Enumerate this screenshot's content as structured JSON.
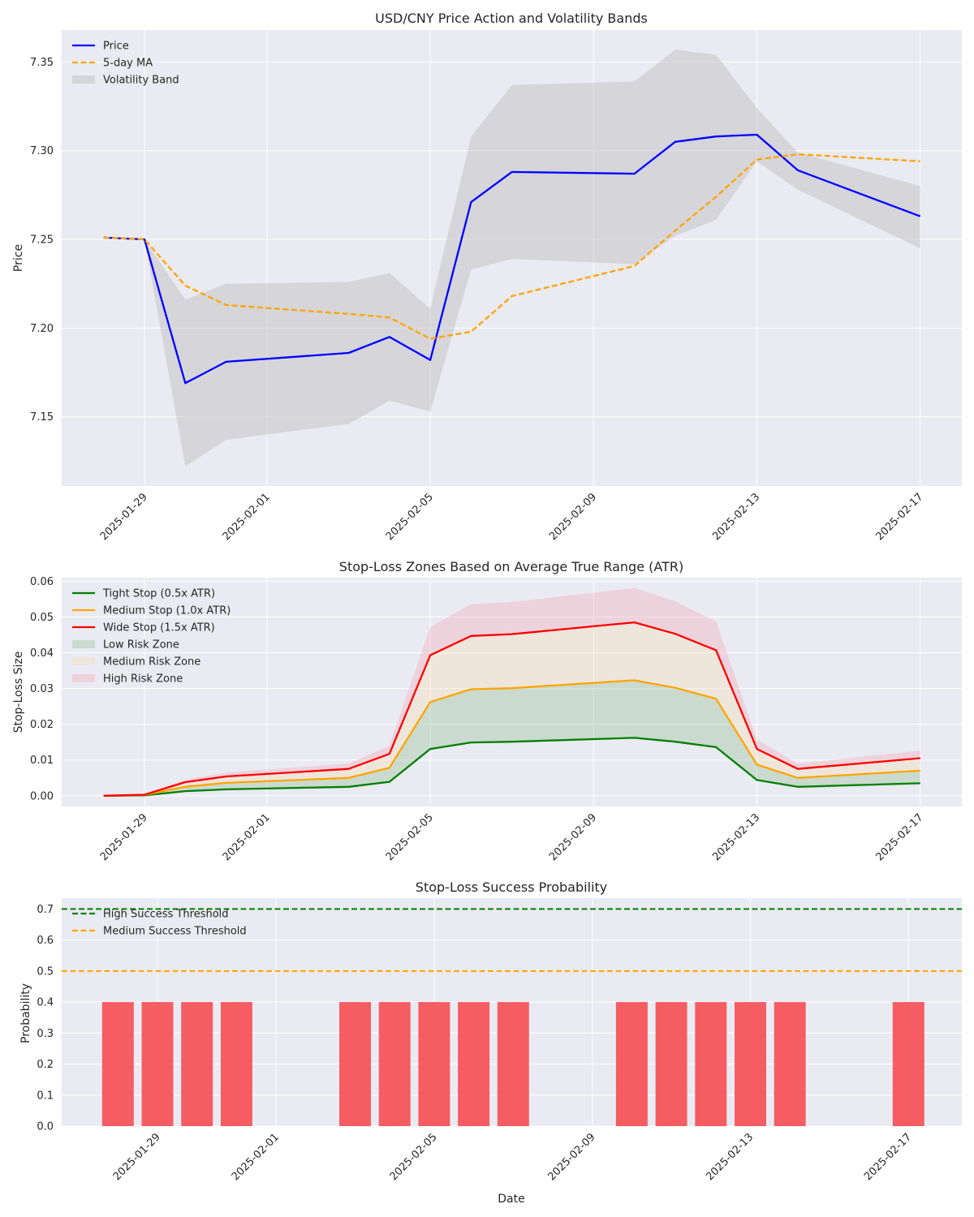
{
  "chart_data": [
    {
      "id": "price",
      "type": "line",
      "title": "USD/CNY Price Action and Volatility Bands",
      "xlabel": "",
      "ylabel": "Price",
      "ylim": [
        7.111,
        7.368
      ],
      "yticks": [
        "7.15",
        "7.20",
        "7.25",
        "7.30",
        "7.35"
      ],
      "ytick_values": [
        7.15,
        7.2,
        7.25,
        7.3,
        7.35
      ],
      "xticks": [
        "2025-01-29",
        "2025-02-01",
        "2025-02-05",
        "2025-02-09",
        "2025-02-13",
        "2025-02-17"
      ],
      "grid": true,
      "legend_position": "top-left",
      "x": [
        "2025-01-28",
        "2025-01-29",
        "2025-01-30",
        "2025-01-31",
        "2025-02-03",
        "2025-02-04",
        "2025-02-05",
        "2025-02-06",
        "2025-02-07",
        "2025-02-10",
        "2025-02-11",
        "2025-02-12",
        "2025-02-13",
        "2025-02-14",
        "2025-02-17"
      ],
      "series": [
        {
          "name": "Price",
          "style": "solid",
          "color": "#0000ff",
          "values": [
            7.251,
            7.25,
            7.169,
            7.181,
            7.186,
            7.195,
            7.182,
            7.271,
            7.288,
            7.287,
            7.305,
            7.308,
            7.309,
            7.289,
            7.263
          ]
        },
        {
          "name": "5-day MA",
          "style": "dashed",
          "color": "#ffa500",
          "values": [
            7.251,
            7.25,
            7.224,
            7.213,
            7.208,
            7.206,
            7.194,
            7.198,
            7.218,
            7.235,
            7.255,
            7.274,
            7.295,
            7.298,
            7.294
          ]
        }
      ],
      "bands": [
        {
          "name": "Volatility Band",
          "color": "#bdbdbd",
          "upper": [
            7.251,
            7.25,
            7.216,
            7.225,
            7.226,
            7.231,
            7.211,
            7.308,
            7.337,
            7.339,
            7.357,
            7.354,
            7.324,
            7.299,
            7.28
          ],
          "lower": [
            7.251,
            7.25,
            7.122,
            7.137,
            7.146,
            7.159,
            7.153,
            7.233,
            7.239,
            7.236,
            7.252,
            7.261,
            7.294,
            7.278,
            7.245
          ]
        }
      ]
    },
    {
      "id": "stoploss",
      "type": "area",
      "title": "Stop-Loss Zones Based on Average True Range (ATR)",
      "xlabel": "",
      "ylabel": "Stop-Loss Size",
      "ylim": [
        -0.003,
        0.061
      ],
      "yticks": [
        "0.00",
        "0.01",
        "0.02",
        "0.03",
        "0.04",
        "0.05",
        "0.06"
      ],
      "ytick_values": [
        0,
        0.01,
        0.02,
        0.03,
        0.04,
        0.05,
        0.06
      ],
      "xticks": [
        "2025-01-29",
        "2025-02-01",
        "2025-02-05",
        "2025-02-09",
        "2025-02-13",
        "2025-02-17"
      ],
      "grid": true,
      "legend_position": "top-left",
      "x": [
        "2025-01-28",
        "2025-01-29",
        "2025-01-30",
        "2025-01-31",
        "2025-02-03",
        "2025-02-04",
        "2025-02-05",
        "2025-02-06",
        "2025-02-07",
        "2025-02-10",
        "2025-02-11",
        "2025-02-12",
        "2025-02-13",
        "2025-02-14",
        "2025-02-17"
      ],
      "series": [
        {
          "name": "Tight Stop (0.5x ATR)",
          "color": "#008000",
          "values": [
            0.0,
            0.0001,
            0.0013,
            0.0018,
            0.0025,
            0.0039,
            0.0131,
            0.0149,
            0.0151,
            0.0162,
            0.0151,
            0.0136,
            0.0044,
            0.0025,
            0.0035
          ]
        },
        {
          "name": "Medium Stop (1.0x ATR)",
          "color": "#ffa500",
          "values": [
            0.0,
            0.0002,
            0.0025,
            0.0036,
            0.005,
            0.0078,
            0.0262,
            0.0298,
            0.0301,
            0.0323,
            0.0302,
            0.0271,
            0.0087,
            0.005,
            0.007
          ]
        },
        {
          "name": "Wide Stop (1.5x ATR)",
          "color": "#ff0000",
          "values": [
            0.0,
            0.0003,
            0.0038,
            0.0054,
            0.0075,
            0.0117,
            0.0393,
            0.0447,
            0.0452,
            0.0485,
            0.0453,
            0.0407,
            0.0131,
            0.0075,
            0.0105
          ]
        }
      ],
      "zones": [
        {
          "name": "Low Risk Zone",
          "color": "#8fbc8f",
          "from": "Tight Stop (0.5x ATR)",
          "to": "Medium Stop (1.0x ATR)"
        },
        {
          "name": "Medium Risk Zone",
          "color": "#f5deb3",
          "from": "Medium Stop (1.0x ATR)",
          "to": "Wide Stop (1.5x ATR)"
        },
        {
          "name": "High Risk Zone",
          "color": "#f4a6b4",
          "from": "Wide Stop (1.5x ATR)",
          "upper_values": [
            0.0,
            0.0004,
            0.0045,
            0.0065,
            0.009,
            0.014,
            0.0472,
            0.0536,
            0.0542,
            0.0581,
            0.0544,
            0.0488,
            0.0157,
            0.009,
            0.0126
          ]
        }
      ]
    },
    {
      "id": "probability",
      "type": "bar",
      "title": "Stop-Loss Success Probability",
      "xlabel": "Date",
      "ylabel": "Probability",
      "ylim": [
        0,
        0.735
      ],
      "yticks": [
        "0.0",
        "0.1",
        "0.2",
        "0.3",
        "0.4",
        "0.5",
        "0.6",
        "0.7"
      ],
      "ytick_values": [
        0,
        0.1,
        0.2,
        0.3,
        0.4,
        0.5,
        0.6,
        0.7
      ],
      "xticks": [
        "2025-01-29",
        "2025-02-01",
        "2025-02-05",
        "2025-02-09",
        "2025-02-13",
        "2025-02-17"
      ],
      "grid": true,
      "legend_position": "top-left",
      "categories": [
        "2025-01-28",
        "2025-01-29",
        "2025-01-30",
        "2025-01-31",
        "2025-02-03",
        "2025-02-04",
        "2025-02-05",
        "2025-02-06",
        "2025-02-07",
        "2025-02-10",
        "2025-02-11",
        "2025-02-12",
        "2025-02-13",
        "2025-02-14",
        "2025-02-17"
      ],
      "values": [
        0.4,
        0.4,
        0.4,
        0.4,
        0.4,
        0.4,
        0.4,
        0.4,
        0.4,
        0.4,
        0.4,
        0.4,
        0.4,
        0.4,
        0.4
      ],
      "bar_color": "#f55d62",
      "thresholds": [
        {
          "name": "High Success Threshold",
          "value": 0.7,
          "color": "#008000"
        },
        {
          "name": "Medium Success Threshold",
          "value": 0.5,
          "color": "#ffa500"
        }
      ]
    }
  ]
}
